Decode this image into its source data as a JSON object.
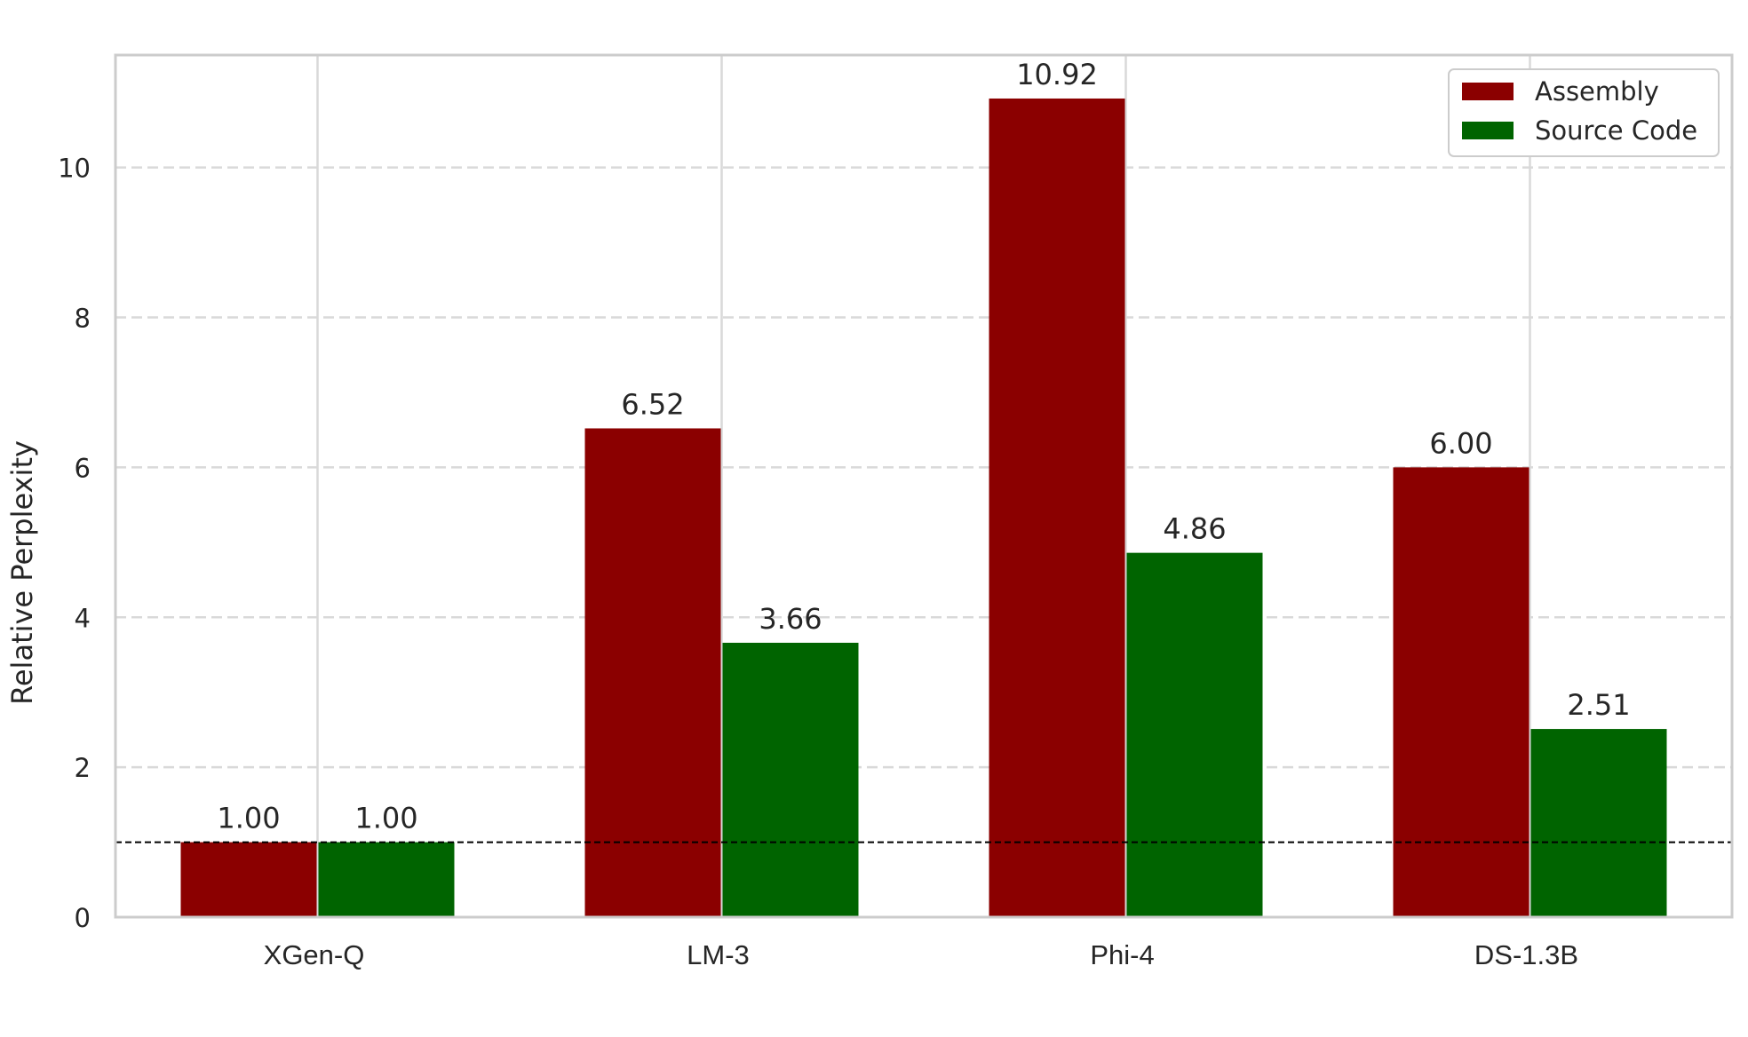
{
  "chart_data": {
    "type": "bar",
    "categories": [
      "XGen-Q",
      "LM-3",
      "Phi-4",
      "DS-1.3B"
    ],
    "series": [
      {
        "name": "Assembly",
        "color": "#8B0000",
        "values": [
          1.0,
          6.52,
          10.92,
          6.0
        ]
      },
      {
        "name": "Source Code",
        "color": "#006400",
        "values": [
          1.0,
          3.66,
          4.86,
          2.51
        ]
      }
    ],
    "data_labels": [
      [
        "1.00",
        "6.52",
        "10.92",
        "6.00"
      ],
      [
        "1.00",
        "3.66",
        "4.86",
        "2.51"
      ]
    ],
    "ylabel": "Relative Perplexity",
    "xlabel": "",
    "ylim": [
      0,
      11.5
    ],
    "yticks": [
      "0",
      "2",
      "4",
      "6",
      "8",
      "10"
    ],
    "reference_line": 1.0,
    "grid": true,
    "legend": "top-right"
  }
}
